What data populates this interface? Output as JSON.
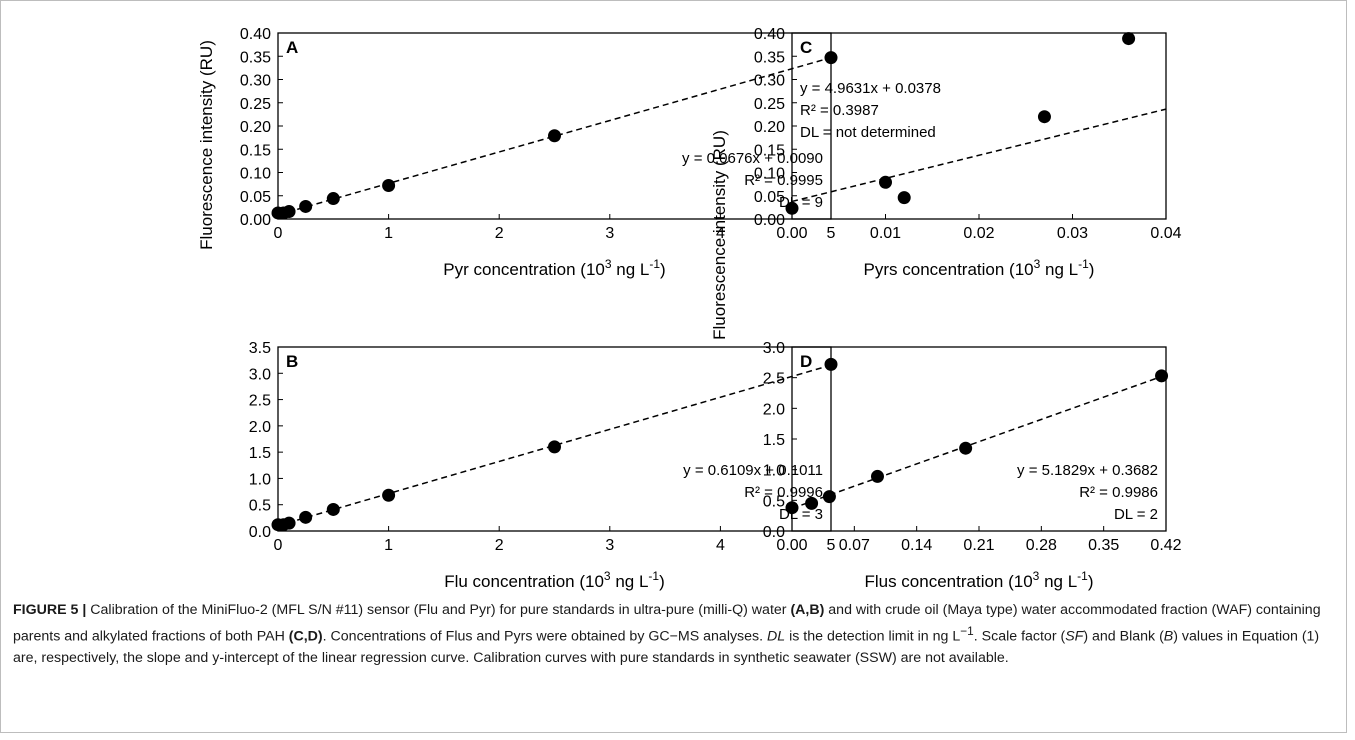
{
  "figure": {
    "y_axis_label": "Fluorescence intensity (RU)",
    "caption": {
      "label": "FIGURE 5 |",
      "t1": " Calibration of the MiniFluo-2 (MFL S/N #11) sensor (Flu and Pyr) for pure standards in ultra-pure (milli-Q) water ",
      "b1": "(A,B)",
      "t2": " and with crude oil (Maya type) water accommodated fraction (WAF) containing parents and alkylated fractions of both PAH ",
      "b2": "(C,D)",
      "t3": ". Concentrations of Flus and Pyrs were obtained by GC−MS analyses. ",
      "i1": "DL",
      "t4": " is the detection limit in ng L",
      "sup1": "−1",
      "t5": ". Scale factor (",
      "i2": "SF",
      "t6": ") and Blank (",
      "i3": "B",
      "t7": ") values in Equation (1) are, respectively, the slope and y-intercept of the linear regression curve. Calibration curves with pure standards in synthetic seawater (SSW) are not available."
    }
  },
  "chart_data": [
    {
      "panel": "A",
      "type": "scatter",
      "trendline": "linear-dashed",
      "xlabel": "Pyr concentration (10³ ng L⁻¹)",
      "xlim": [
        0,
        5
      ],
      "ylim": [
        0,
        0.4
      ],
      "xticks": [
        "0",
        "1",
        "2",
        "3",
        "4",
        "5"
      ],
      "yticks": [
        "0.00",
        "0.05",
        "0.10",
        "0.15",
        "0.20",
        "0.25",
        "0.30",
        "0.35",
        "0.40"
      ],
      "x": [
        0,
        0.05,
        0.1,
        0.25,
        0.5,
        1,
        2.5,
        5
      ],
      "y": [
        0.013,
        0.013,
        0.016,
        0.027,
        0.044,
        0.072,
        0.179,
        0.347
      ],
      "fit": {
        "slope": 0.0676,
        "intercept": 0.009
      },
      "annotations": [
        "y = 0.0676x + 0.0090",
        "R² = 0.9995",
        "DL = 9"
      ],
      "annotation_position": "lower-right"
    },
    {
      "panel": "B",
      "type": "scatter",
      "trendline": "linear-dashed",
      "xlabel": "Flu concentration (10³ ng L⁻¹)",
      "xlim": [
        0,
        5
      ],
      "ylim": [
        0,
        3.5
      ],
      "xticks": [
        "0",
        "1",
        "2",
        "3",
        "4",
        "5"
      ],
      "yticks": [
        "0.0",
        "0.5",
        "1.0",
        "1.5",
        "2.0",
        "2.5",
        "3.0",
        "3.5"
      ],
      "x": [
        0,
        0.05,
        0.1,
        0.25,
        0.5,
        1,
        2.5,
        5
      ],
      "y": [
        0.12,
        0.12,
        0.15,
        0.26,
        0.41,
        0.68,
        1.6,
        3.17
      ],
      "fit": {
        "slope": 0.6109,
        "intercept": 0.1011
      },
      "annotations": [
        "y = 0.6109x + 0.1011",
        "R² = 0.9996",
        "DL = 3"
      ],
      "annotation_position": "lower-right"
    },
    {
      "panel": "C",
      "type": "scatter",
      "trendline": "linear-dashed",
      "xlabel": "Pyrs concentration (10³ ng L⁻¹)",
      "xlim": [
        0,
        0.04
      ],
      "ylim": [
        0,
        0.4
      ],
      "xticks": [
        "0.00",
        "0.01",
        "0.02",
        "0.03",
        "0.04"
      ],
      "yticks": [
        "0.00",
        "0.05",
        "0.10",
        "0.15",
        "0.20",
        "0.25",
        "0.30",
        "0.35",
        "0.40"
      ],
      "x": [
        0,
        0.01,
        0.012,
        0.027,
        0.036
      ],
      "y": [
        0.023,
        0.079,
        0.046,
        0.22,
        0.388
      ],
      "fit": {
        "slope": 4.9631,
        "intercept": 0.0378
      },
      "annotations": [
        "y = 4.9631x + 0.0378",
        "R² = 0.3987",
        "DL = not determined"
      ],
      "annotation_position": "upper-left"
    },
    {
      "panel": "D",
      "type": "scatter",
      "trendline": "linear-dashed",
      "xlabel": "Flus concentration (10³ ng L⁻¹)",
      "xlim": [
        0,
        0.42
      ],
      "ylim": [
        0,
        3.0
      ],
      "xticks": [
        "0.00",
        "0.07",
        "0.14",
        "0.21",
        "0.28",
        "0.35",
        "0.42"
      ],
      "yticks": [
        "0.0",
        "0.5",
        "1.0",
        "1.5",
        "2.0",
        "2.5",
        "3.0"
      ],
      "x": [
        0,
        0.022,
        0.042,
        0.096,
        0.195,
        0.415
      ],
      "y": [
        0.38,
        0.45,
        0.56,
        0.89,
        1.35,
        2.53
      ],
      "fit": {
        "slope": 5.1829,
        "intercept": 0.3682
      },
      "annotations": [
        "y = 5.1829x + 0.3682",
        "R² = 0.9986",
        "DL = 2"
      ],
      "annotation_position": "lower-right"
    }
  ]
}
